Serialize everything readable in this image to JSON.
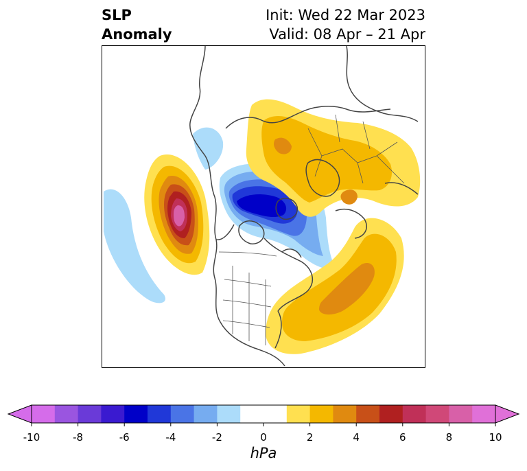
{
  "title": {
    "left_line1": "SLP",
    "left_line2": "Anomaly",
    "right_line1": "Init: Wed 22 Mar 2023",
    "right_line2": "Valid: 08 Apr – 21 Apr"
  },
  "colorbar": {
    "unit": "hPa",
    "ticks": [
      -10,
      -8,
      -6,
      -4,
      -2,
      0,
      2,
      4,
      6,
      8,
      10
    ],
    "tick_labels": [
      "-10",
      "-8",
      "-6",
      "-4",
      "-2",
      "0",
      "2",
      "4",
      "6",
      "8",
      "10"
    ],
    "levels": [
      -10,
      -9,
      -8,
      -7,
      -6,
      -5,
      -4,
      -3,
      -2,
      -1,
      1,
      2,
      3,
      4,
      5,
      6,
      7,
      8,
      9,
      10
    ],
    "colors": [
      "#d56cea",
      "#9a55e0",
      "#6a3ad8",
      "#3a1ad0",
      "#0000c8",
      "#2038d8",
      "#4a74e6",
      "#76acf0",
      "#acdcfa",
      "#ffffff",
      "#ffe050",
      "#f4b800",
      "#e08a10",
      "#c85018",
      "#b02020",
      "#c03058",
      "#d04878",
      "#d860a8",
      "#e070d8"
    ],
    "extend": "both"
  },
  "map": {
    "projection": "north-polar-stereographic",
    "features": [
      "coastlines",
      "country-borders",
      "state-borders"
    ],
    "anomalies": [
      {
        "name": "positive-anomaly-northeast-pacific",
        "peak_hpa": 10
      },
      {
        "name": "negative-anomaly-arctic",
        "peak_hpa": -6
      },
      {
        "name": "positive-anomaly-north-atlantic",
        "peak_hpa": 4
      },
      {
        "name": "positive-anomaly-eurasia",
        "peak_hpa": 3
      },
      {
        "name": "negative-anomaly-alaska",
        "peak_hpa": -2
      },
      {
        "name": "negative-anomaly-central-pacific",
        "peak_hpa": -2
      }
    ]
  }
}
